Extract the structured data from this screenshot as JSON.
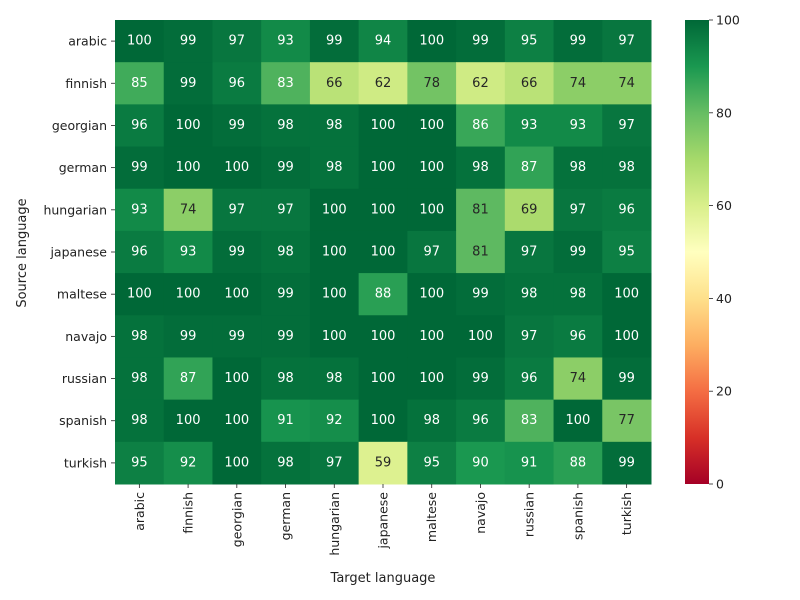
{
  "chart_data": {
    "type": "heatmap",
    "xlabel": "Target language",
    "ylabel": "Source language",
    "x_categories": [
      "arabic",
      "finnish",
      "georgian",
      "german",
      "hungarian",
      "japanese",
      "maltese",
      "navajo",
      "russian",
      "spanish",
      "turkish"
    ],
    "y_categories": [
      "arabic",
      "finnish",
      "georgian",
      "german",
      "hungarian",
      "japanese",
      "maltese",
      "navajo",
      "russian",
      "spanish",
      "turkish"
    ],
    "values": [
      [
        100,
        99,
        97,
        93,
        99,
        94,
        100,
        99,
        95,
        99,
        97
      ],
      [
        85,
        99,
        96,
        83,
        66,
        62,
        78,
        62,
        66,
        74,
        74
      ],
      [
        96,
        100,
        99,
        98,
        98,
        100,
        100,
        86,
        93,
        93,
        97
      ],
      [
        99,
        100,
        100,
        99,
        98,
        100,
        100,
        98,
        87,
        98,
        98
      ],
      [
        93,
        74,
        97,
        97,
        100,
        100,
        100,
        81,
        69,
        97,
        96
      ],
      [
        96,
        93,
        99,
        98,
        100,
        100,
        97,
        81,
        97,
        99,
        95
      ],
      [
        100,
        100,
        100,
        99,
        100,
        88,
        100,
        99,
        98,
        98,
        100
      ],
      [
        98,
        99,
        99,
        99,
        100,
        100,
        100,
        100,
        97,
        96,
        100
      ],
      [
        98,
        87,
        100,
        98,
        98,
        100,
        100,
        99,
        96,
        74,
        99
      ],
      [
        98,
        100,
        100,
        91,
        92,
        100,
        98,
        96,
        83,
        100,
        77
      ],
      [
        95,
        92,
        100,
        98,
        97,
        59,
        95,
        90,
        91,
        88,
        99
      ]
    ],
    "colormap": "RdYlGn",
    "vmin": 0,
    "vmax": 100,
    "colorbar_ticks": [
      "0",
      "20",
      "40",
      "60",
      "80",
      "100"
    ],
    "annotated": true,
    "grid": false,
    "legend": "colorbar-right"
  }
}
